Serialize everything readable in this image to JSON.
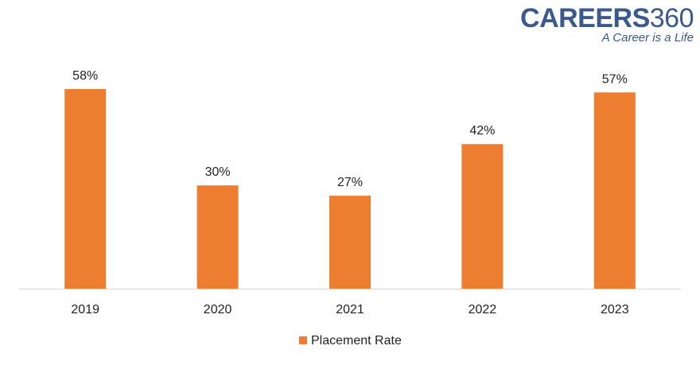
{
  "logo": {
    "word": "CAREERS",
    "number": "360",
    "tagline": "A Career is a Life",
    "color": "#3a5a8c"
  },
  "chart_data": {
    "type": "bar",
    "categories": [
      "2019",
      "2020",
      "2021",
      "2022",
      "2023"
    ],
    "series": [
      {
        "name": "Placement Rate",
        "values": [
          58,
          30,
          27,
          42,
          57
        ],
        "labels": [
          "58%",
          "30%",
          "27%",
          "42%",
          "57%"
        ],
        "color": "#ed7d31"
      }
    ],
    "ylim": [
      0,
      70
    ],
    "grid": false,
    "legend": "bottom",
    "axis_color": "#d9d9d9"
  }
}
